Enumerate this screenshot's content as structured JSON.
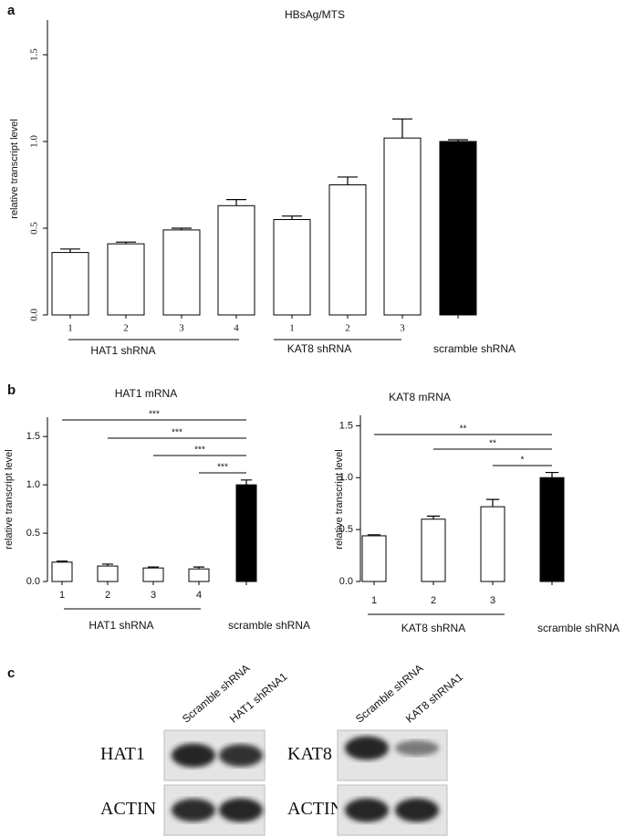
{
  "panel_labels": [
    "a",
    "b",
    "c"
  ],
  "chart_data": [
    {
      "type": "bar",
      "title": "HBsAg/MTS",
      "y_label": "relative transcript level",
      "categories": [
        "1",
        "2",
        "3",
        "4",
        "1",
        "2",
        "3",
        null
      ],
      "values": [
        0.36,
        0.41,
        0.49,
        0.63,
        0.55,
        0.75,
        1.02,
        1.0
      ],
      "errors": [
        0.02,
        0.01,
        0.01,
        0.035,
        0.02,
        0.045,
        0.11,
        0.01
      ],
      "colors": [
        "#ffffff",
        "#ffffff",
        "#ffffff",
        "#ffffff",
        "#ffffff",
        "#ffffff",
        "#ffffff",
        "#000000"
      ],
      "groups": [
        "HAT1 shRNA",
        "KAT8 shRNA",
        "scramble shRNA"
      ],
      "ylim": [
        0,
        1.7
      ],
      "yticks": [
        {
          "value": 0,
          "label": "0.0"
        },
        0.5,
        {
          "value": 1,
          "label": "1.0"
        },
        1.5
      ]
    },
    {
      "type": "bar",
      "title": "HAT1 mRNA",
      "y_label": "relative transcript level",
      "categories": [
        "1",
        "2",
        "3",
        "4",
        null
      ],
      "values": [
        0.2,
        0.16,
        0.14,
        0.13,
        1.0
      ],
      "errors": [
        0.01,
        0.02,
        0.01,
        0.02,
        0.05
      ],
      "colors": [
        "#ffffff",
        "#ffffff",
        "#ffffff",
        "#ffffff",
        "#000000"
      ],
      "groups": [
        "HAT1 shRNA",
        "scramble shRNA"
      ],
      "annotations": [
        "***",
        "***",
        "***",
        "***"
      ],
      "ylim": [
        0,
        1.7
      ],
      "yticks": [
        {
          "value": 0,
          "label": "0.0"
        },
        0.5,
        {
          "value": 1,
          "label": "1.0"
        },
        1.5
      ]
    },
    {
      "type": "bar",
      "title": "KAT8 mRNA",
      "y_label": "relative transcript level",
      "categories": [
        "1",
        "2",
        "3",
        null
      ],
      "values": [
        0.44,
        0.6,
        0.72,
        1.0
      ],
      "errors": [
        0.01,
        0.03,
        0.07,
        0.05
      ],
      "colors": [
        "#ffffff",
        "#ffffff",
        "#ffffff",
        "#000000"
      ],
      "groups": [
        "KAT8 shRNA",
        "scramble shRNA"
      ],
      "annotations": [
        "**",
        "**",
        "*"
      ],
      "ylim": [
        0,
        1.6
      ],
      "yticks": [
        {
          "value": 0,
          "label": "0.0"
        },
        0.5,
        {
          "value": 1,
          "label": "1.0"
        },
        1.5
      ]
    }
  ],
  "western_blot": {
    "blocks": [
      {
        "columns": [
          "Scramble shRNA",
          "HAT1 shRNA1"
        ],
        "rows": [
          "HAT1",
          "ACTIN"
        ]
      },
      {
        "columns": [
          "Scramble shRNA",
          "KAT8 shRNA1"
        ],
        "rows": [
          "KAT8",
          "ACTIN"
        ]
      }
    ]
  }
}
